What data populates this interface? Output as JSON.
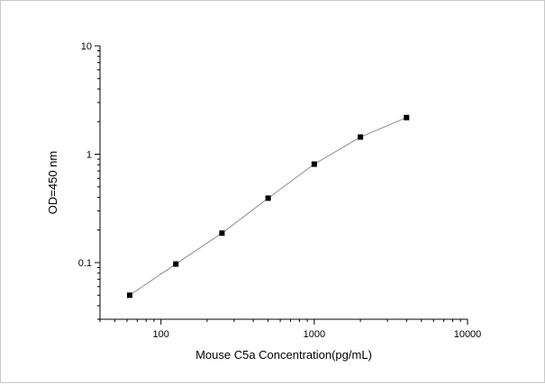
{
  "chart_data": {
    "type": "scatter",
    "title": "",
    "xlabel": "Mouse C5a Concentration(pg/mL)",
    "ylabel": "OD=450 nm",
    "x_scale": "log",
    "y_scale": "log",
    "xlim": [
      40,
      10000
    ],
    "ylim": [
      0.03,
      10
    ],
    "x_ticks": [
      {
        "value": 100,
        "label": "100"
      },
      {
        "value": 1000,
        "label": "1000"
      },
      {
        "value": 10000,
        "label": "10000"
      }
    ],
    "y_ticks": [
      {
        "value": 0.1,
        "label": "0.1"
      },
      {
        "value": 1,
        "label": "1"
      },
      {
        "value": 10,
        "label": "10"
      }
    ],
    "grid": false,
    "legend": "none",
    "marker_color": "#000000",
    "line_color": "#8a8a8a",
    "series": [
      {
        "x": [
          62.5,
          125,
          250,
          500,
          1000,
          2000,
          4000
        ],
        "y": [
          0.05,
          0.097,
          0.187,
          0.393,
          0.81,
          1.44,
          2.18
        ]
      }
    ]
  }
}
